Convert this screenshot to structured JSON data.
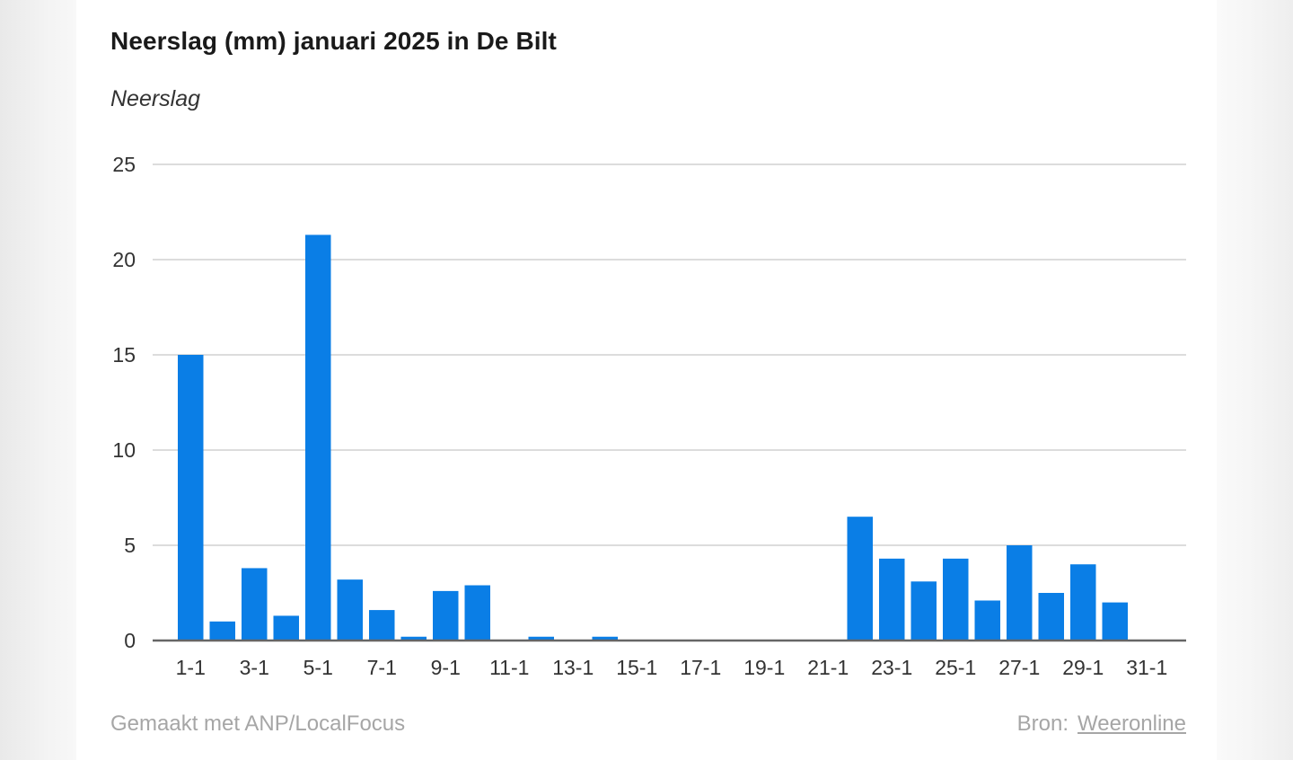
{
  "chart_data": {
    "type": "bar",
    "title": "Neerslag (mm) januari 2025 in De Bilt",
    "subtitle": "Neerslag",
    "xlabel": "",
    "ylabel": "",
    "ylim": [
      0,
      25
    ],
    "yticks": [
      "0",
      "5",
      "10",
      "15",
      "20",
      "25"
    ],
    "grid": true,
    "bar_color": "#0a7ee6",
    "categories": [
      "1-1",
      "2-1",
      "3-1",
      "4-1",
      "5-1",
      "6-1",
      "7-1",
      "8-1",
      "9-1",
      "10-1",
      "11-1",
      "12-1",
      "13-1",
      "14-1",
      "15-1",
      "16-1",
      "17-1",
      "18-1",
      "19-1",
      "20-1",
      "21-1",
      "22-1",
      "23-1",
      "24-1",
      "25-1",
      "26-1",
      "27-1",
      "28-1",
      "29-1",
      "30-1",
      "31-1"
    ],
    "xtick_labels": [
      "1-1",
      "3-1",
      "5-1",
      "7-1",
      "9-1",
      "11-1",
      "13-1",
      "15-1",
      "17-1",
      "19-1",
      "21-1",
      "23-1",
      "25-1",
      "27-1",
      "29-1",
      "31-1"
    ],
    "values": [
      15.0,
      1.0,
      3.8,
      1.3,
      21.3,
      3.2,
      1.6,
      0.2,
      2.6,
      2.9,
      0.0,
      0.2,
      0.0,
      0.2,
      0.0,
      0.0,
      0.0,
      0.0,
      0.0,
      0.0,
      0.0,
      6.5,
      4.3,
      3.1,
      4.3,
      2.1,
      5.0,
      2.5,
      4.0,
      2.0,
      0.0
    ]
  },
  "footer": {
    "credit": "Gemaakt met ANP/LocalFocus",
    "source_label": "Bron:",
    "source_link": "Weeronline"
  }
}
